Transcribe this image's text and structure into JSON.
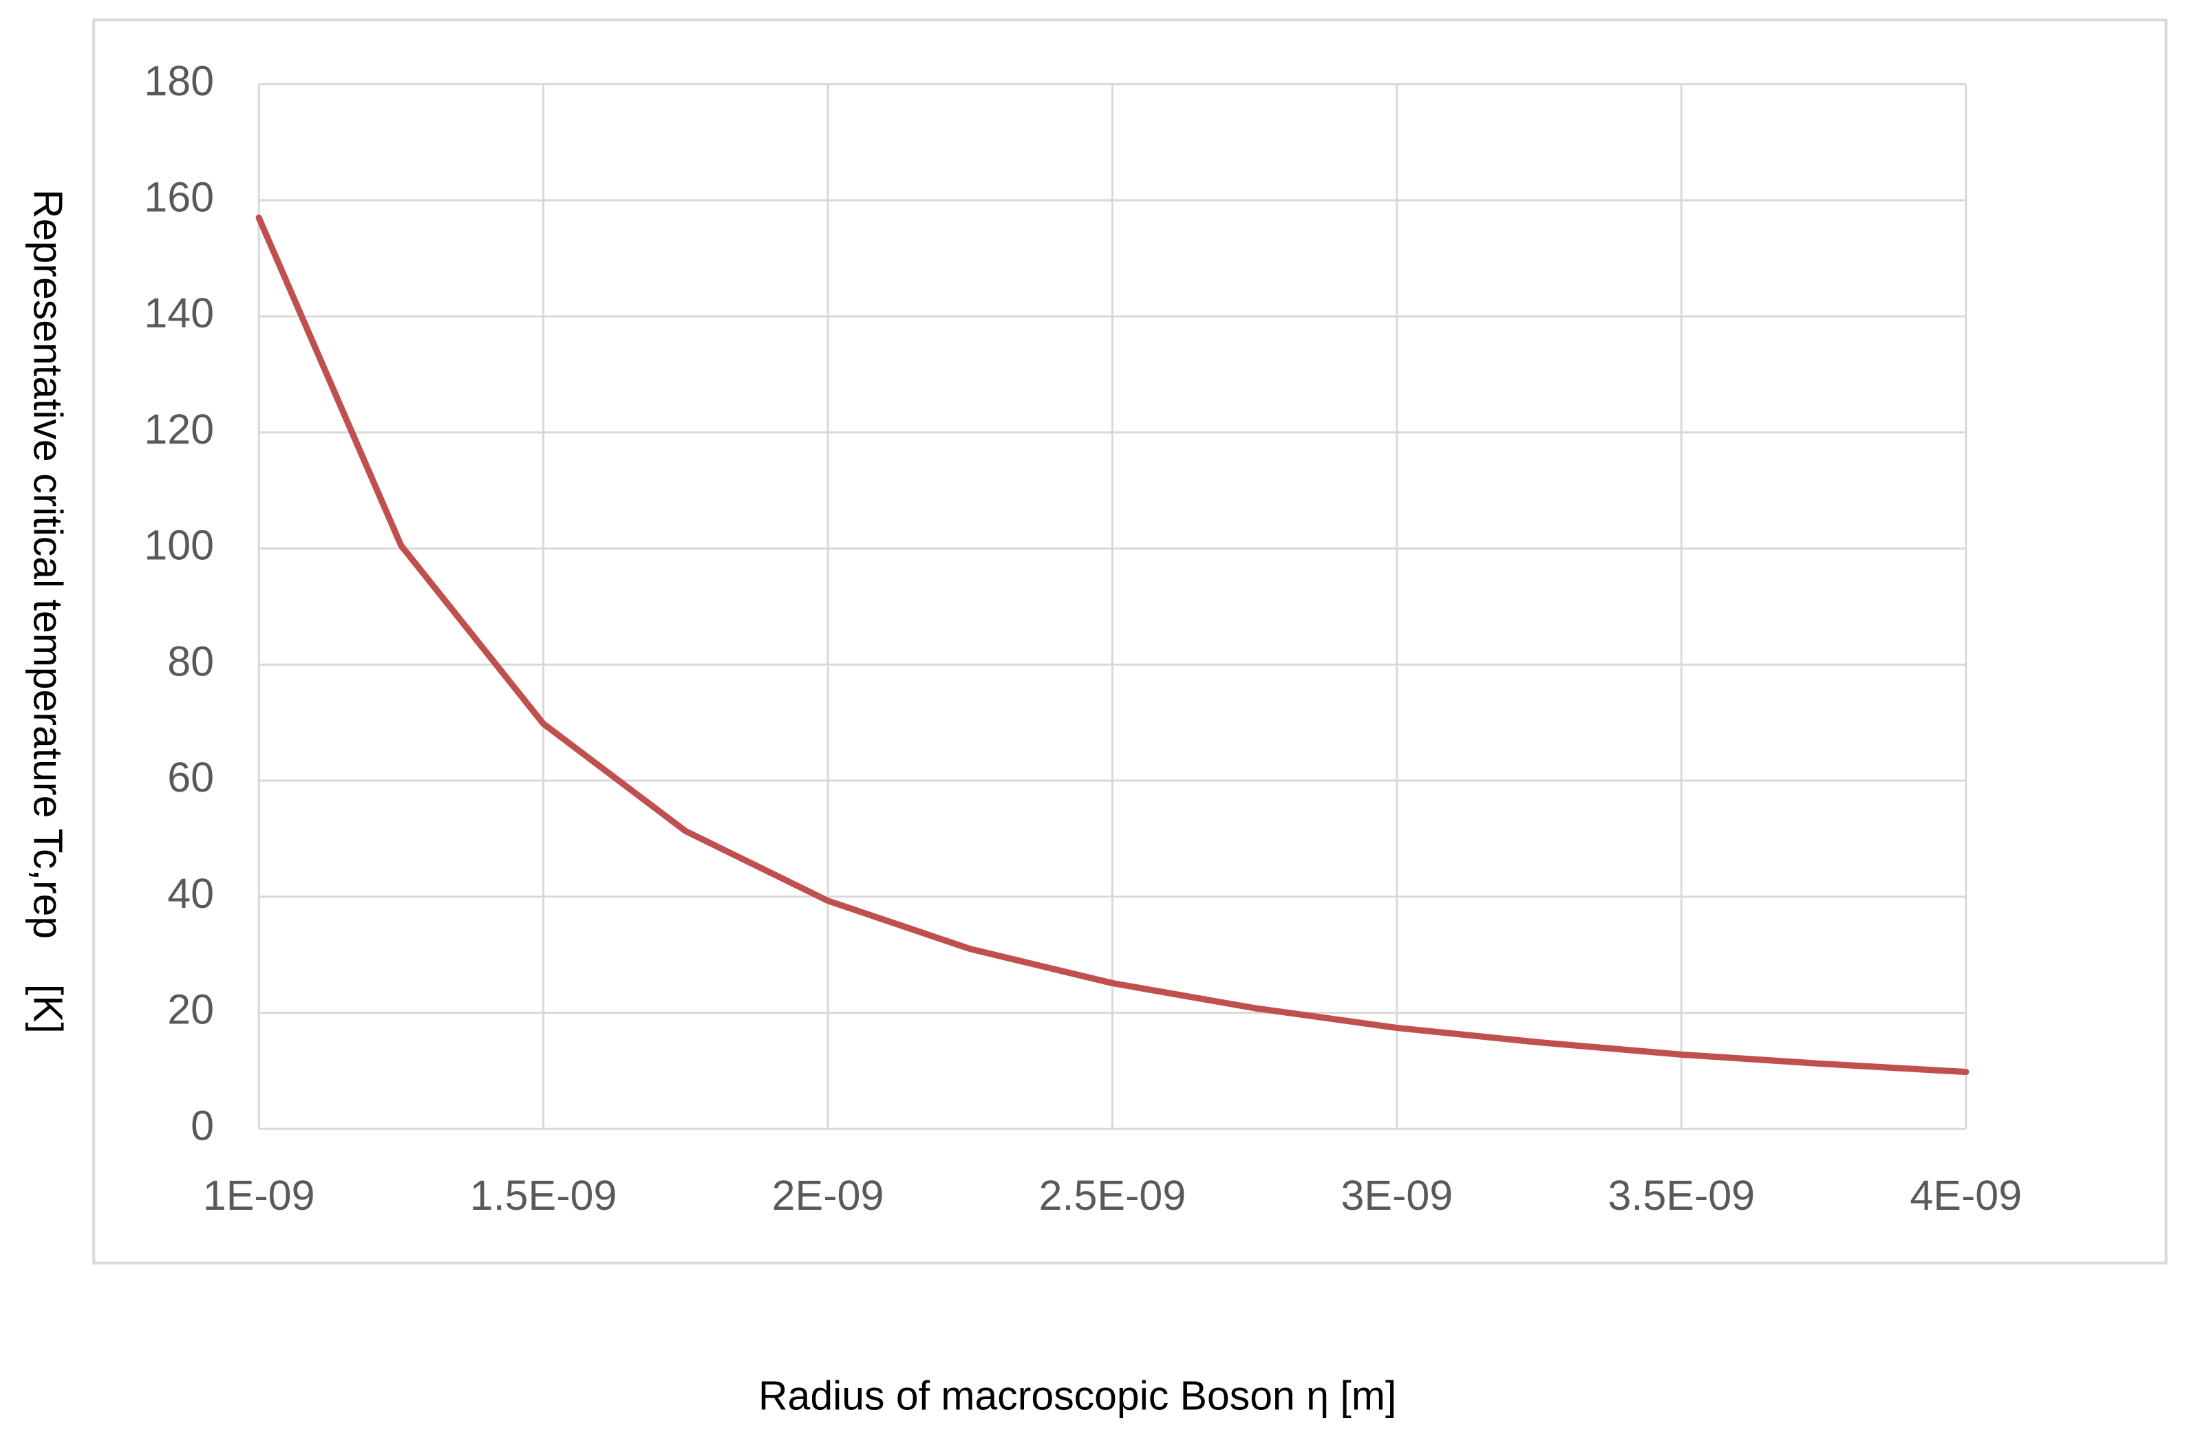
{
  "chart_data": {
    "type": "line",
    "x_label": "Radius of macroscopic Boson η [m]",
    "y_label": "Representative critical temperature Tc,rep    [K]",
    "x": [
      1e-09,
      1.25e-09,
      1.5e-09,
      1.75e-09,
      2e-09,
      2.25e-09,
      2.5e-09,
      2.75e-09,
      3e-09,
      3.25e-09,
      3.5e-09,
      3.75e-09,
      4e-09
    ],
    "series": [
      {
        "name": "Tc,rep",
        "color": "#c0504d",
        "values": [
          157,
          100.5,
          69.8,
          51.3,
          39.3,
          31.0,
          25.1,
          20.8,
          17.4,
          14.9,
          12.8,
          11.2,
          9.8
        ]
      }
    ],
    "xlim": [
      1e-09,
      4e-09
    ],
    "xticks": [
      {
        "value": 1e-09,
        "label": "1E-09"
      },
      {
        "value": 1.5e-09,
        "label": "1.5E-09"
      },
      {
        "value": 2e-09,
        "label": "2E-09"
      },
      {
        "value": 2.5e-09,
        "label": "2.5E-09"
      },
      {
        "value": 3e-09,
        "label": "3E-09"
      },
      {
        "value": 3.5e-09,
        "label": "3.5E-09"
      },
      {
        "value": 4e-09,
        "label": "4E-09"
      }
    ],
    "ylim": [
      0,
      180
    ],
    "yticks": [
      0,
      20,
      40,
      60,
      80,
      100,
      120,
      140,
      160,
      180
    ],
    "grid": true
  }
}
